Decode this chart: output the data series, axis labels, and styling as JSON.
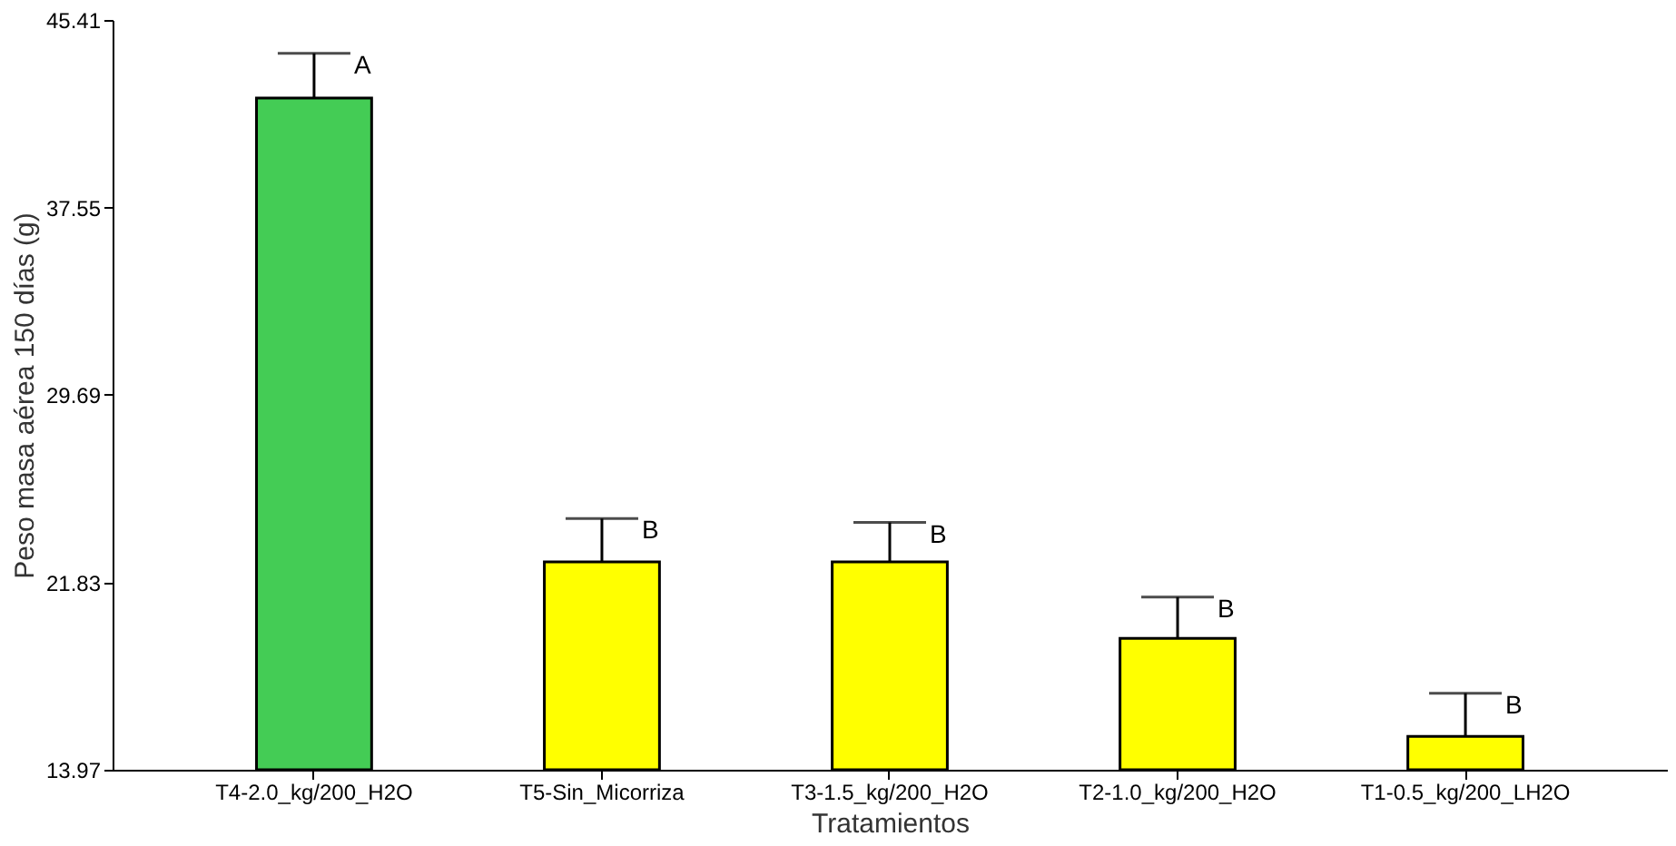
{
  "chart_data": {
    "type": "bar",
    "xlabel": "Tratamientos",
    "ylabel": "Peso masa aérea 150 días (g)",
    "categories": [
      "T4-2.0_kg/200_H2O",
      "T5-Sin_Micorriza",
      "T3-1.5_kg/200_H2O",
      "T2-1.0_kg/200_H2O",
      "T1-0.5_kg/200_LH2O"
    ],
    "values": [
      42.14,
      22.69,
      22.69,
      19.48,
      15.37
    ],
    "colors": [
      "#44cc55",
      "#ffff00",
      "#ffff00",
      "#ffff00",
      "#ffff00"
    ],
    "errors": [
      [
        42.14,
        44.01
      ],
      [
        22.69,
        24.5
      ],
      [
        22.69,
        24.34
      ],
      [
        19.48,
        21.21
      ],
      [
        15.37,
        17.18
      ]
    ],
    "annotations": [
      {
        "text": "A",
        "x": "T4-2.0_kg/200_H2O",
        "y": 44.01
      },
      {
        "text": "B",
        "x": "T5-Sin_Micorriza",
        "y": 24.5
      },
      {
        "text": "B",
        "x": "T3-1.5_kg/200_H2O",
        "y": 24.34
      },
      {
        "text": "B",
        "x": "T2-1.0_kg/200_H2O",
        "y": 21.21
      },
      {
        "text": "B",
        "x": "T1-0.5_kg/200_LH2O",
        "y": 17.18
      }
    ],
    "ylim": [
      13.97,
      45.41
    ],
    "yticks": [
      13.97,
      21.83,
      29.69,
      37.55,
      45.41
    ],
    "grid": false
  }
}
